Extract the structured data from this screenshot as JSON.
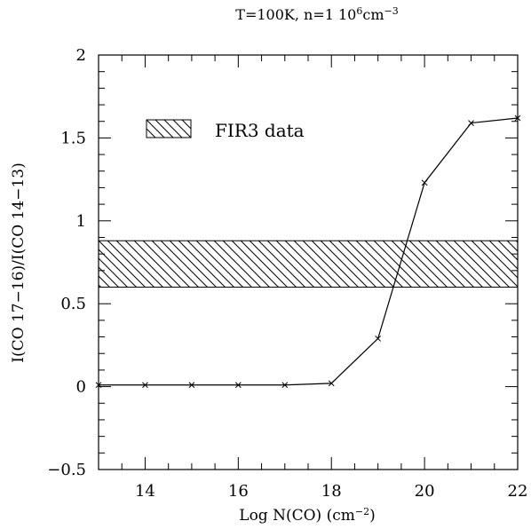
{
  "chart_data": {
    "type": "line",
    "title": {
      "prefix": "T=100K, n=1 10",
      "exp1": "6",
      "mid": "cm",
      "exp2": "−3"
    },
    "xlabel": {
      "main": "Log N(CO) (cm",
      "exp": "−2",
      "close": ")"
    },
    "ylabel": "I(CO 17−16)/I(CO 14−13)",
    "xlim": [
      13,
      22
    ],
    "ylim": [
      -0.5,
      2
    ],
    "xticks": [
      14,
      16,
      18,
      20,
      22
    ],
    "xtick_labels": [
      "14",
      "16",
      "18",
      "20",
      "22"
    ],
    "yticks": [
      -0.5,
      0,
      0.5,
      1,
      1.5,
      2
    ],
    "ytick_labels": [
      "−0.5",
      "0",
      "0.5",
      "1",
      "1.5",
      "2"
    ],
    "series": [
      {
        "x": [
          13,
          14,
          15,
          16,
          17,
          18,
          19,
          20,
          21,
          22
        ],
        "y": [
          0.01,
          0.01,
          0.01,
          0.01,
          0.01,
          0.02,
          0.29,
          1.23,
          1.59,
          1.62
        ]
      }
    ],
    "band": {
      "ymin": 0.6,
      "ymax": 0.88
    },
    "legend": {
      "label": "FIR3 data",
      "position": "top-left"
    }
  }
}
